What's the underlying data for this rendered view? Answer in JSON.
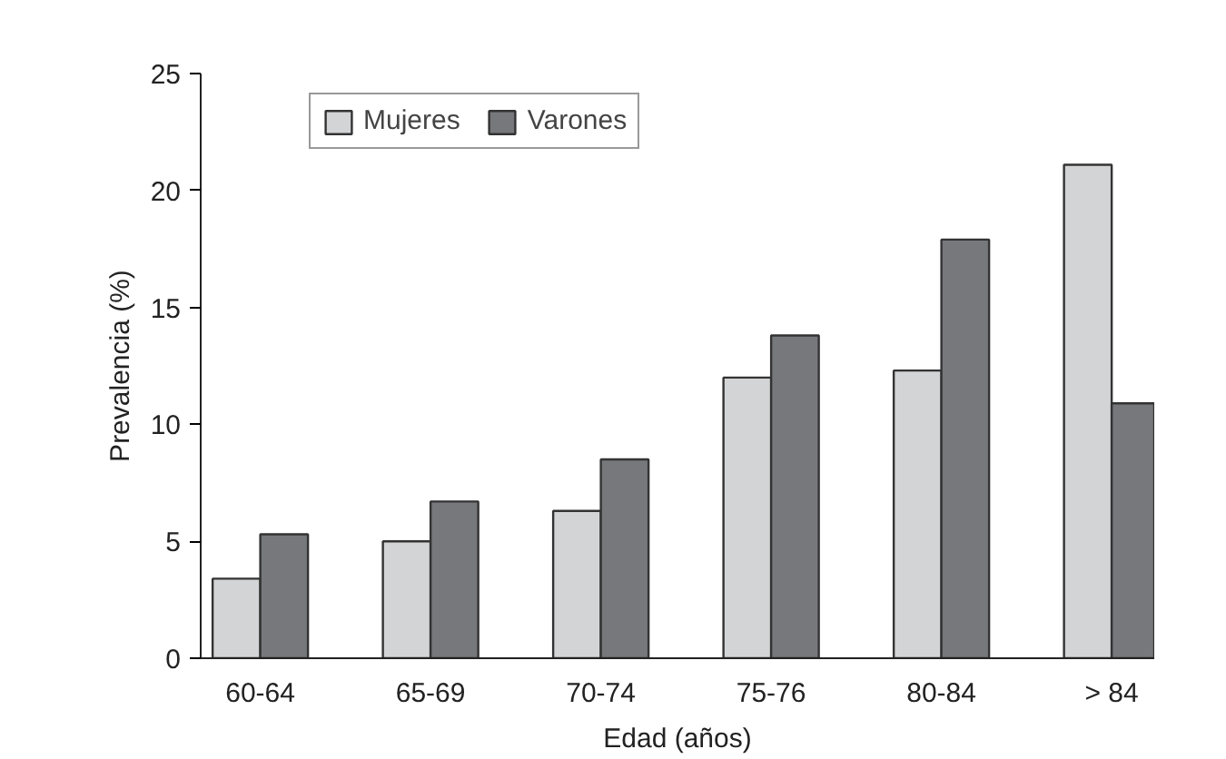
{
  "chart_data": {
    "type": "bar",
    "xlabel": "Edad (años)",
    "ylabel": "Prevalencia (%)",
    "categories": [
      "60-64",
      "65-69",
      "70-74",
      "75-76",
      "80-84",
      "> 84"
    ],
    "series": [
      {
        "name": "Mujeres",
        "color": "#d3d4d6",
        "values": [
          3.4,
          5.0,
          6.3,
          12.0,
          12.3,
          21.1
        ]
      },
      {
        "name": "Varones",
        "color": "#77787b",
        "values": [
          5.3,
          6.7,
          8.5,
          13.8,
          17.9,
          10.9
        ]
      }
    ],
    "ylim": [
      0,
      25
    ],
    "yticks": [
      0,
      5,
      10,
      15,
      20,
      25
    ],
    "grid": false,
    "legend": "top left"
  }
}
